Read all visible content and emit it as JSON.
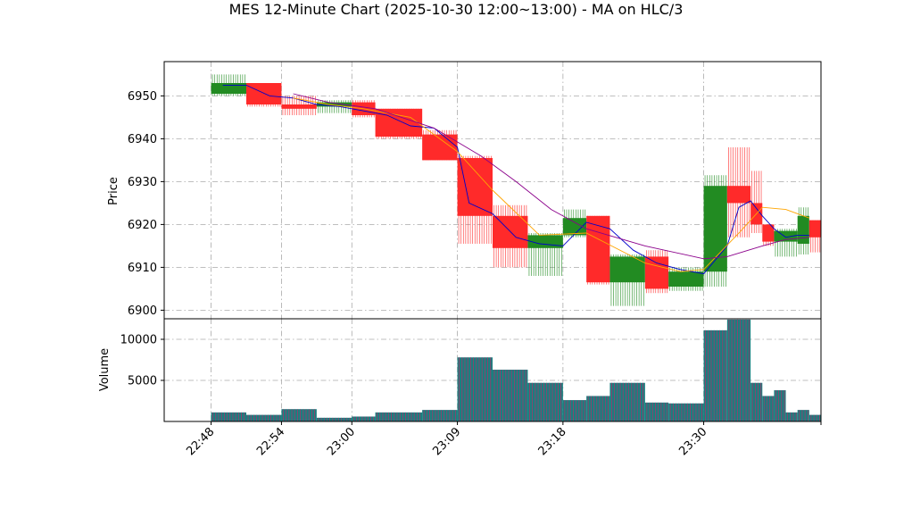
{
  "title": "MES 12-Minute Chart (2025-10-30 12:00~13:00) - MA on HLC/3",
  "colors": {
    "up": "#228b22",
    "down": "#ff2a2a",
    "ma_fast": "#0000cc",
    "ma_mid": "#ffa500",
    "ma_slow": "#8b008b",
    "vol_fill": "#1a7f7f",
    "grid": "#aaaaaa"
  },
  "chart_data": [
    {
      "type": "candlestick",
      "title": "MES 12-Minute Chart (2025-10-30 12:00~13:00) - MA on HLC/3",
      "xlabel": "",
      "ylabel": "Price",
      "ylim": [
        6898,
        6958
      ],
      "yticks": [
        6900,
        6910,
        6920,
        6930,
        6940,
        6950
      ],
      "xlim": [
        "22:44",
        "23:40"
      ],
      "xticks": [
        "22:48",
        "22:54",
        "23:00",
        "23:09",
        "23:18",
        "23:30"
      ],
      "xtick_positions": [
        "22:48",
        "22:54",
        "23:00",
        "23:09",
        "23:18",
        "23:30"
      ],
      "grid": true,
      "candles": [
        {
          "start": "22:48",
          "end": "22:51",
          "open": 6950.5,
          "high": 6955,
          "low": 6950,
          "close": 6953
        },
        {
          "start": "22:51",
          "end": "22:54",
          "open": 6953,
          "high": 6953,
          "low": 6947.5,
          "close": 6948
        },
        {
          "start": "22:54",
          "end": "22:57",
          "open": 6948,
          "high": 6950,
          "low": 6945.5,
          "close": 6947
        },
        {
          "start": "22:57",
          "end": "23:00",
          "open": 6947.5,
          "high": 6949,
          "low": 6946,
          "close": 6948.5
        },
        {
          "start": "23:00",
          "end": "23:02",
          "open": 6948.5,
          "high": 6949,
          "low": 6945,
          "close": 6945.5
        },
        {
          "start": "23:02",
          "end": "23:06",
          "open": 6947,
          "high": 6947,
          "low": 6940,
          "close": 6940.5
        },
        {
          "start": "23:06",
          "end": "23:09",
          "open": 6941,
          "high": 6942,
          "low": 6935,
          "close": 6935
        },
        {
          "start": "23:09",
          "end": "23:12",
          "open": 6935.5,
          "high": 6936,
          "low": 6915.5,
          "close": 6922
        },
        {
          "start": "23:12",
          "end": "23:15",
          "open": 6922,
          "high": 6924.5,
          "low": 6910,
          "close": 6914.5
        },
        {
          "start": "23:15",
          "end": "23:18",
          "open": 6914.5,
          "high": 6918,
          "low": 6908,
          "close": 6917.5
        },
        {
          "start": "23:18",
          "end": "23:20",
          "open": 6917.5,
          "high": 6923.5,
          "low": 6917,
          "close": 6921.5
        },
        {
          "start": "23:20",
          "end": "23:22",
          "open": 6922,
          "high": 6922,
          "low": 6906,
          "close": 6906.5
        },
        {
          "start": "23:22",
          "end": "23:25",
          "open": 6906.5,
          "high": 6913,
          "low": 6901,
          "close": 6912.5
        },
        {
          "start": "23:25",
          "end": "23:27",
          "open": 6912.5,
          "high": 6914,
          "low": 6904,
          "close": 6905
        },
        {
          "start": "23:27",
          "end": "23:30",
          "open": 6905.5,
          "high": 6910,
          "low": 6904.5,
          "close": 6909
        },
        {
          "start": "23:30",
          "end": "23:32",
          "open": 6909,
          "high": 6931.5,
          "low": 6905.5,
          "close": 6929
        },
        {
          "start": "23:32",
          "end": "23:34",
          "open": 6929,
          "high": 6938,
          "low": 6917,
          "close": 6925
        },
        {
          "start": "23:34",
          "end": "23:35",
          "open": 6925,
          "high": 6932.5,
          "low": 6918,
          "close": 6920
        },
        {
          "start": "23:35",
          "end": "23:36",
          "open": 6920,
          "high": 6920,
          "low": 6915,
          "close": 6916
        },
        {
          "start": "23:36",
          "end": "23:38",
          "open": 6916,
          "high": 6919,
          "low": 6912.5,
          "close": 6918.5
        },
        {
          "start": "23:38",
          "end": "23:39",
          "open": 6915.5,
          "high": 6924,
          "low": 6913,
          "close": 6922
        },
        {
          "start": "23:39",
          "end": "23:40",
          "open": 6921,
          "high": 6921,
          "low": 6913.5,
          "close": 6917
        }
      ],
      "moving_averages": [
        {
          "color": "blue",
          "x": [
            "22:49",
            "22:51",
            "22:53",
            "22:55",
            "22:57",
            "22:59",
            "23:01",
            "23:03",
            "23:05",
            "23:07",
            "23:09",
            "23:10",
            "23:12",
            "23:14",
            "23:16",
            "23:18",
            "23:20",
            "23:22",
            "23:24",
            "23:26",
            "23:28",
            "23:30",
            "23:32",
            "23:33",
            "23:34",
            "23:35",
            "23:36",
            "23:37",
            "23:38",
            "23:39"
          ],
          "y": [
            6952.5,
            6952.5,
            6950,
            6949.5,
            6948,
            6947.5,
            6946.5,
            6945.5,
            6943,
            6942.5,
            6938,
            6925,
            6922.5,
            6917,
            6915.5,
            6915,
            6920.5,
            6919,
            6914,
            6911,
            6909.5,
            6908.5,
            6915,
            6924,
            6925.5,
            6922,
            6919,
            6917,
            6917.5,
            6917.5
          ]
        },
        {
          "color": "orange",
          "x": [
            "22:55",
            "22:58",
            "23:01",
            "23:05",
            "23:09",
            "23:12",
            "23:16",
            "23:20",
            "23:25",
            "23:28",
            "23:30",
            "23:33",
            "23:35",
            "23:37",
            "23:39"
          ],
          "y": [
            6949.5,
            6948,
            6947,
            6945,
            6937,
            6928,
            6917.5,
            6918,
            6911,
            6909,
            6909.5,
            6918,
            6924,
            6923.5,
            6921.5
          ]
        },
        {
          "color": "purple",
          "x": [
            "22:55",
            "22:58",
            "23:02",
            "23:07",
            "23:11",
            "23:14",
            "23:17",
            "23:20",
            "23:25",
            "23:30",
            "23:32",
            "23:35",
            "23:37",
            "23:39"
          ],
          "y": [
            6950.5,
            6948.5,
            6947,
            6942.5,
            6936,
            6930,
            6923.5,
            6919,
            6915,
            6912,
            6912.5,
            6915,
            6916.5,
            6917
          ]
        }
      ]
    },
    {
      "type": "bar",
      "ylabel": "Volume",
      "ylim": [
        0,
        12500
      ],
      "yticks": [
        5000,
        10000
      ],
      "grid": true,
      "volumes": [
        {
          "start": "22:48",
          "end": "22:51",
          "value": 1100
        },
        {
          "start": "22:51",
          "end": "22:54",
          "value": 800
        },
        {
          "start": "22:54",
          "end": "22:57",
          "value": 1500
        },
        {
          "start": "22:57",
          "end": "23:00",
          "value": 450
        },
        {
          "start": "23:00",
          "end": "23:02",
          "value": 600
        },
        {
          "start": "23:02",
          "end": "23:06",
          "value": 1100
        },
        {
          "start": "23:06",
          "end": "23:09",
          "value": 1400
        },
        {
          "start": "23:09",
          "end": "23:12",
          "value": 7800
        },
        {
          "start": "23:12",
          "end": "23:15",
          "value": 6300
        },
        {
          "start": "23:15",
          "end": "23:18",
          "value": 4700
        },
        {
          "start": "23:18",
          "end": "23:20",
          "value": 2600
        },
        {
          "start": "23:20",
          "end": "23:22",
          "value": 3100
        },
        {
          "start": "23:22",
          "end": "23:25",
          "value": 4700
        },
        {
          "start": "23:25",
          "end": "23:27",
          "value": 2300
        },
        {
          "start": "23:27",
          "end": "23:30",
          "value": 2200
        },
        {
          "start": "23:30",
          "end": "23:32",
          "value": 11100
        },
        {
          "start": "23:32",
          "end": "23:34",
          "value": 12400
        },
        {
          "start": "23:34",
          "end": "23:35",
          "value": 4700
        },
        {
          "start": "23:35",
          "end": "23:36",
          "value": 3100
        },
        {
          "start": "23:36",
          "end": "23:37",
          "value": 3800
        },
        {
          "start": "23:37",
          "end": "23:38",
          "value": 1100
        },
        {
          "start": "23:38",
          "end": "23:39",
          "value": 1400
        },
        {
          "start": "23:39",
          "end": "23:40",
          "value": 800
        }
      ]
    }
  ]
}
